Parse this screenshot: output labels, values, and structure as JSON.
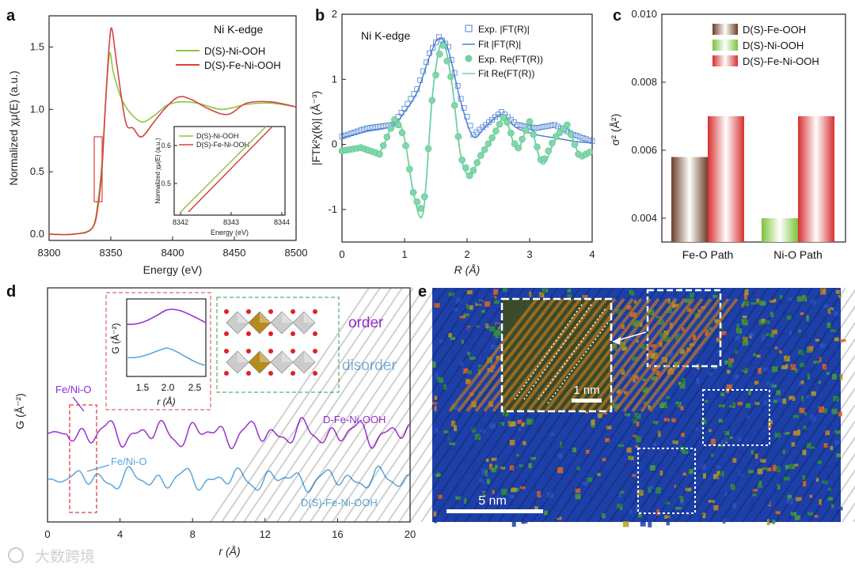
{
  "panels": {
    "a": {
      "letter": "a",
      "title": "Ni K-edge",
      "xlabel": "Energy (eV)",
      "ylabel": "Normalized χμ(E) (a.u.)",
      "xticks": [
        "8300",
        "8350",
        "8400",
        "8450",
        "8500"
      ],
      "yticks": [
        "0.0",
        "0.5",
        "1.0",
        "1.5"
      ],
      "legend": [
        "D(S)-Ni-OOH",
        "D(S)-Fe-Ni-OOH"
      ],
      "inset": {
        "xlabel": "Energy (eV)",
        "ylabel": "Normalized χμ(E) (a.u.)",
        "xticks": [
          "8342",
          "8343",
          "8344"
        ],
        "yticks": [
          "0.5",
          "0.6"
        ],
        "legend": [
          "D(S)-Ni-OOH",
          "D(S)-Fe-Ni-OOH"
        ]
      }
    },
    "b": {
      "letter": "b",
      "title": "Ni K-edge",
      "xlabel": "R (Å)",
      "ylabel": "|FTk²χ(k)| (Å⁻³)",
      "xticks": [
        "0",
        "1",
        "2",
        "3",
        "4"
      ],
      "yticks": [
        "-1",
        "0",
        "1",
        "2"
      ],
      "legend": [
        "Exp. |FT(R)|",
        "Fit |FT(R)|",
        "Exp. Re(FT(R))",
        "Fit Re(FT(R))"
      ]
    },
    "c": {
      "letter": "c",
      "ylabel": "σ² (Å²)",
      "yticks": [
        "0.004",
        "0.006",
        "0.008",
        "0.010"
      ],
      "legend": [
        "D(S)-Fe-OOH",
        "D(S)-Ni-OOH",
        "D(S)-Fe-Ni-OOH"
      ],
      "categories": [
        "Fe-O Path",
        "Ni-O Path"
      ]
    },
    "d": {
      "letter": "d",
      "xlabel": "r (Å)",
      "ylabel": "G (Å⁻²)",
      "xticks": [
        "0",
        "4",
        "8",
        "12",
        "16",
        "20"
      ],
      "labels": {
        "order": "order",
        "disorder": "disorder",
        "top_curve": "D-Fe-Ni-OOH",
        "bottom_curve": "D(S)-Fe-Ni-OOH",
        "peak1": "Fe/Ni-O",
        "peak2": "Fe/Ni-O"
      },
      "inset": {
        "xlabel": "r (Å)",
        "ylabel": "G (Å⁻²)",
        "xticks": [
          "1.5",
          "2.0",
          "2.5"
        ]
      }
    },
    "e": {
      "letter": "e",
      "scale_main": "5 nm",
      "scale_inset": "1 nm"
    }
  },
  "watermark": "大数跨境",
  "colors": {
    "green": "#8dc63f",
    "red": "#d94040",
    "blue": "#4a7fd4",
    "teal": "#6fd0a0",
    "purple": "#9b30d0",
    "lightblue": "#5aa6dc",
    "brown": "#8b5a3c"
  },
  "chart_data": [
    {
      "type": "line",
      "panel": "a",
      "xlim": [
        8300,
        8500
      ],
      "ylim": [
        -0.05,
        1.75
      ],
      "series": [
        {
          "name": "D(S)-Ni-OOH",
          "x": [
            8300,
            8320,
            8335,
            8340,
            8343,
            8346,
            8349,
            8352,
            8358,
            8365,
            8375,
            8385,
            8395,
            8405,
            8420,
            8440,
            8460,
            8480,
            8500
          ],
          "y": [
            0.0,
            0.0,
            0.05,
            0.3,
            0.6,
            1.1,
            1.45,
            1.3,
            1.1,
            0.98,
            0.9,
            0.95,
            1.03,
            1.06,
            1.05,
            1.0,
            1.04,
            1.05,
            1.02
          ]
        },
        {
          "name": "D(S)-Fe-Ni-OOH",
          "x": [
            8300,
            8320,
            8335,
            8340,
            8343,
            8346,
            8349,
            8351,
            8355,
            8362,
            8368,
            8375,
            8385,
            8395,
            8405,
            8415,
            8430,
            8445,
            8460,
            8480,
            8500
          ],
          "y": [
            0.0,
            0.0,
            0.05,
            0.25,
            0.55,
            1.1,
            1.55,
            1.64,
            1.35,
            0.9,
            0.85,
            0.78,
            0.9,
            1.02,
            1.1,
            1.08,
            1.0,
            0.96,
            1.05,
            1.06,
            1.02
          ]
        }
      ]
    },
    {
      "type": "line",
      "panel": "b",
      "xlim": [
        0,
        4
      ],
      "ylim": [
        -1.5,
        2
      ],
      "series": [
        {
          "name": "Exp. |FT(R)|",
          "x": [
            0,
            0.4,
            0.8,
            1.0,
            1.2,
            1.4,
            1.55,
            1.7,
            1.9,
            2.1,
            2.3,
            2.55,
            2.8,
            3.1,
            3.4,
            3.7,
            4.0
          ],
          "y": [
            0.12,
            0.25,
            0.3,
            0.55,
            0.85,
            1.4,
            1.65,
            1.5,
            0.7,
            0.15,
            0.3,
            0.5,
            0.3,
            0.25,
            0.3,
            0.15,
            0.05
          ]
        },
        {
          "name": "Fit |FT(R)|",
          "x": [
            0,
            0.4,
            0.8,
            1.0,
            1.2,
            1.4,
            1.55,
            1.7,
            1.9,
            2.1,
            2.3,
            2.55,
            2.8,
            3.1,
            3.4,
            3.7,
            4.0
          ],
          "y": [
            0.1,
            0.2,
            0.28,
            0.5,
            0.8,
            1.35,
            1.63,
            1.45,
            0.65,
            0.12,
            0.28,
            0.45,
            0.25,
            0.15,
            0.1,
            0.05,
            0.02
          ]
        },
        {
          "name": "Exp. Re(FT(R))",
          "x": [
            0,
            0.3,
            0.6,
            0.85,
            1.0,
            1.15,
            1.3,
            1.45,
            1.6,
            1.75,
            1.9,
            2.05,
            2.2,
            2.4,
            2.6,
            2.8,
            3.0,
            3.2,
            3.4,
            3.6,
            3.8,
            4.0
          ],
          "y": [
            -0.1,
            -0.05,
            -0.15,
            0.4,
            0.1,
            -0.8,
            -1.05,
            0.8,
            1.6,
            1.0,
            -0.2,
            -0.5,
            -0.2,
            0.1,
            0.45,
            -0.1,
            0.35,
            -0.3,
            0.1,
            0.3,
            -0.2,
            -0.1
          ]
        },
        {
          "name": "Fit Re(FT(R))",
          "x": [
            0,
            0.3,
            0.6,
            0.85,
            1.0,
            1.15,
            1.3,
            1.45,
            1.6,
            1.75,
            1.9,
            2.05,
            2.2,
            2.4,
            2.6,
            2.8,
            3.0,
            3.2,
            3.4,
            3.6,
            3.8,
            4.0
          ],
          "y": [
            -0.1,
            -0.05,
            -0.12,
            0.38,
            0.08,
            -0.78,
            -1.03,
            0.78,
            1.58,
            0.98,
            -0.18,
            -0.48,
            -0.2,
            0.08,
            0.4,
            -0.08,
            0.3,
            -0.3,
            0.05,
            0.25,
            -0.15,
            -0.08
          ]
        }
      ]
    },
    {
      "type": "bar",
      "panel": "c",
      "categories": [
        "Fe-O Path",
        "Ni-O Path"
      ],
      "ylim": [
        0.0033,
        0.01
      ],
      "series": [
        {
          "name": "D(S)-Fe-OOH",
          "values": [
            0.0058,
            null
          ]
        },
        {
          "name": "D(S)-Ni-OOH",
          "values": [
            null,
            0.004
          ]
        },
        {
          "name": "D(S)-Fe-Ni-OOH",
          "values": [
            0.007,
            0.007
          ]
        }
      ]
    },
    {
      "type": "line",
      "panel": "d",
      "xlim": [
        0,
        20
      ],
      "series": [
        {
          "name": "D-Fe-Ni-OOH"
        },
        {
          "name": "D(S)-Fe-Ni-OOH"
        }
      ]
    }
  ]
}
